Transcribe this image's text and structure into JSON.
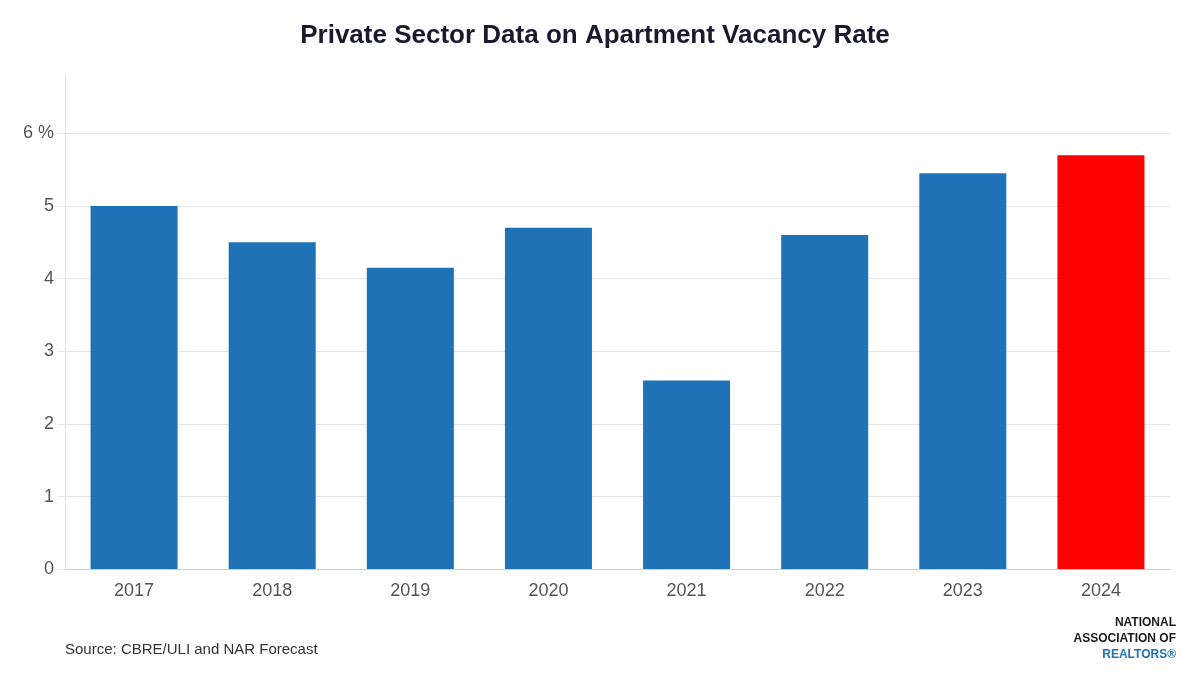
{
  "chart_data": {
    "type": "bar",
    "title": "Private Sector Data on Apartment Vacancy Rate",
    "categories": [
      "2017",
      "2018",
      "2019",
      "2020",
      "2021",
      "2022",
      "2023",
      "2024"
    ],
    "values": [
      5.0,
      4.5,
      4.15,
      4.7,
      2.6,
      4.6,
      5.45,
      5.7
    ],
    "colors": [
      "#1F72B5",
      "#1F72B5",
      "#1F72B5",
      "#1F72B5",
      "#1F72B5",
      "#1F72B5",
      "#1F72B5",
      "#FF0000"
    ],
    "ylim": [
      0,
      6.8
    ],
    "yticks": [
      0,
      1,
      2,
      3,
      4,
      5,
      {
        "value": 6,
        "label": "6 %"
      }
    ],
    "grid": true,
    "annotations": [
      "Source: CBRE/ULI and NAR Forecast",
      "NATIONAL",
      "ASSOCIATION OF",
      "REALTORS®"
    ]
  }
}
